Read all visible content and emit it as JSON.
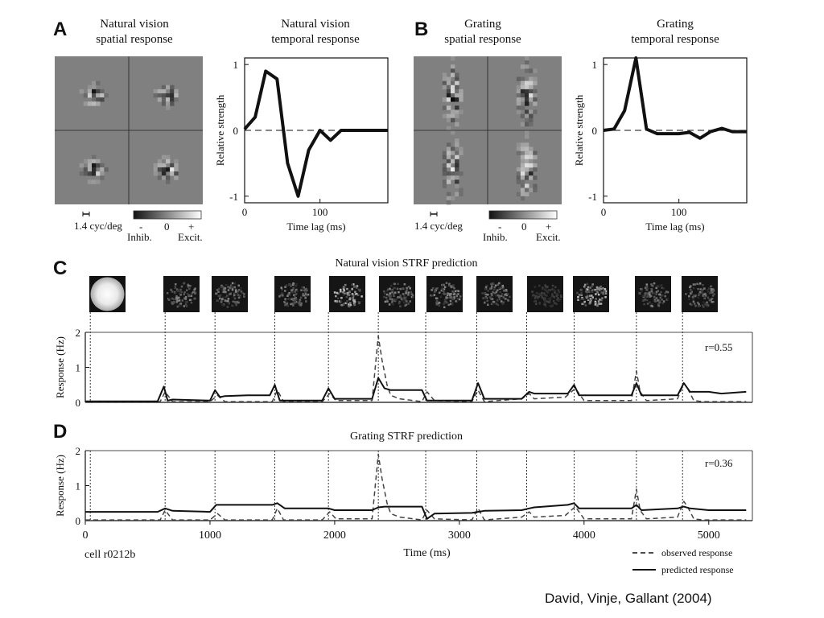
{
  "caption": "David, Vinje, Gallant (2004)",
  "panels": {
    "A": {
      "letter": "A",
      "spatial_title_1": "Natural vision",
      "spatial_title_2": "spatial response",
      "temporal_title_1": "Natural vision",
      "temporal_title_2": "temporal response",
      "scale_label": "1.4 cyc/deg",
      "colorbar_minus": "-",
      "colorbar_zero": "0",
      "colorbar_plus": "+",
      "colorbar_inhib": "Inhib.",
      "colorbar_excit": "Excit."
    },
    "B": {
      "letter": "B",
      "spatial_title_1": "Grating",
      "spatial_title_2": "spatial response",
      "temporal_title_1": "Grating",
      "temporal_title_2": "temporal response",
      "scale_label": "1.4 cyc/deg",
      "colorbar_minus": "-",
      "colorbar_zero": "0",
      "colorbar_plus": "+",
      "colorbar_inhib": "Inhib.",
      "colorbar_excit": "Excit."
    },
    "C": {
      "letter": "C",
      "title": "Natural vision STRF prediction",
      "r_label": "r=0.55"
    },
    "D": {
      "letter": "D",
      "title": "Grating STRF prediction",
      "r_label": "r=0.36"
    }
  },
  "cell_label": "cell r0212b",
  "legend": {
    "observed": "observed response",
    "predicted": "predicted response"
  },
  "chart_data": [
    {
      "type": "line",
      "panel": "A",
      "title": "Natural vision temporal response",
      "xlabel": "Time lag (ms)",
      "ylabel": "Relative strength",
      "xlim": [
        0,
        190
      ],
      "ylim": [
        -1.1,
        1.1
      ],
      "xticks": [
        0,
        100
      ],
      "yticks": [
        -1,
        0,
        1
      ],
      "series": [
        {
          "x": [
            0,
            14,
            28,
            43,
            57,
            71,
            85,
            100,
            114,
            128,
            142,
            157,
            171,
            190
          ],
          "values": [
            0.02,
            0.2,
            0.9,
            0.78,
            -0.5,
            -1.0,
            -0.3,
            0.0,
            -0.15,
            0.0,
            0.0,
            0.0,
            0.0,
            0.0
          ]
        }
      ]
    },
    {
      "type": "line",
      "panel": "B",
      "title": "Grating temporal response",
      "xlabel": "Time lag (ms)",
      "ylabel": "Relative strength",
      "xlim": [
        0,
        190
      ],
      "ylim": [
        -1.1,
        1.1
      ],
      "xticks": [
        0,
        100
      ],
      "yticks": [
        -1,
        0,
        1
      ],
      "series": [
        {
          "x": [
            0,
            14,
            28,
            43,
            57,
            71,
            85,
            100,
            114,
            128,
            142,
            157,
            171,
            190
          ],
          "values": [
            0.0,
            0.02,
            0.3,
            1.1,
            0.02,
            -0.05,
            -0.05,
            -0.05,
            -0.03,
            -0.12,
            -0.02,
            0.03,
            -0.02,
            -0.02
          ]
        }
      ]
    },
    {
      "type": "line",
      "panel": "C",
      "title": "Natural vision STRF prediction",
      "ylabel": "Response (Hz)",
      "xlim": [
        0,
        5350
      ],
      "ylim": [
        0,
        2
      ],
      "yticks": [
        0,
        1,
        2
      ],
      "stimulus_onsets": [
        40,
        640,
        1040,
        1520,
        1950,
        2350,
        2730,
        3140,
        3540,
        3920,
        4420,
        4790
      ],
      "series": [
        {
          "name": "observed response",
          "style": "dashed",
          "x": [
            0,
            600,
            640,
            700,
            1000,
            1060,
            1120,
            1500,
            1540,
            1590,
            1900,
            1960,
            2010,
            2300,
            2350,
            2380,
            2420,
            2450,
            2520,
            2700,
            2740,
            2800,
            3100,
            3150,
            3200,
            3500,
            3560,
            3600,
            3850,
            3930,
            4000,
            4380,
            4420,
            4450,
            4500,
            4750,
            4800,
            4830,
            4880,
            4950,
            5300
          ],
          "values": [
            0.02,
            0.02,
            0.3,
            0.02,
            0.02,
            0.2,
            0.02,
            0.02,
            0.35,
            0.02,
            0.02,
            0.25,
            0.05,
            0.05,
            1.9,
            1.2,
            0.5,
            0.2,
            0.1,
            0.02,
            0.3,
            0.05,
            0.02,
            0.35,
            0.02,
            0.1,
            0.25,
            0.1,
            0.15,
            0.4,
            0.05,
            0.05,
            0.9,
            0.3,
            0.05,
            0.1,
            0.55,
            0.4,
            0.05,
            0.02,
            0.02
          ]
        },
        {
          "name": "predicted response",
          "style": "solid",
          "x": [
            0,
            580,
            630,
            660,
            700,
            1000,
            1040,
            1080,
            1120,
            1300,
            1480,
            1520,
            1560,
            1900,
            1950,
            2000,
            2300,
            2350,
            2400,
            2450,
            2700,
            2740,
            2800,
            3100,
            3150,
            3200,
            3500,
            3560,
            3600,
            3870,
            3920,
            3960,
            4380,
            4420,
            4460,
            4750,
            4800,
            4850,
            5000,
            5100,
            5300
          ],
          "values": [
            0.03,
            0.03,
            0.45,
            0.05,
            0.08,
            0.05,
            0.35,
            0.15,
            0.18,
            0.2,
            0.2,
            0.5,
            0.05,
            0.05,
            0.4,
            0.1,
            0.1,
            0.7,
            0.4,
            0.35,
            0.35,
            0.05,
            0.05,
            0.05,
            0.55,
            0.1,
            0.1,
            0.3,
            0.25,
            0.25,
            0.5,
            0.2,
            0.2,
            0.55,
            0.2,
            0.2,
            0.55,
            0.3,
            0.3,
            0.25,
            0.3
          ]
        }
      ]
    },
    {
      "type": "line",
      "panel": "D",
      "title": "Grating STRF prediction",
      "xlabel": "Time (ms)",
      "ylabel": "Response (Hz)",
      "xlim": [
        0,
        5350
      ],
      "ylim": [
        0,
        2
      ],
      "xticks": [
        0,
        1000,
        2000,
        3000,
        4000,
        5000
      ],
      "yticks": [
        0,
        1,
        2
      ],
      "stimulus_onsets": [
        40,
        640,
        1040,
        1520,
        1950,
        2350,
        2730,
        3140,
        3540,
        3920,
        4420,
        4790
      ],
      "series": [
        {
          "name": "observed response",
          "style": "dashed",
          "x": [
            0,
            600,
            640,
            700,
            1000,
            1060,
            1120,
            1500,
            1540,
            1590,
            1900,
            1960,
            2010,
            2300,
            2350,
            2380,
            2420,
            2450,
            2520,
            2700,
            2740,
            2800,
            3100,
            3150,
            3200,
            3500,
            3560,
            3600,
            3850,
            3930,
            4000,
            4380,
            4420,
            4450,
            4500,
            4750,
            4800,
            4830,
            4880,
            4950,
            5300
          ],
          "values": [
            0.02,
            0.02,
            0.3,
            0.02,
            0.02,
            0.2,
            0.02,
            0.02,
            0.35,
            0.02,
            0.02,
            0.25,
            0.05,
            0.05,
            1.9,
            1.2,
            0.5,
            0.2,
            0.1,
            0.02,
            0.3,
            0.05,
            0.02,
            0.35,
            0.02,
            0.1,
            0.25,
            0.1,
            0.15,
            0.4,
            0.05,
            0.05,
            0.9,
            0.3,
            0.05,
            0.1,
            0.55,
            0.4,
            0.05,
            0.02,
            0.02
          ]
        },
        {
          "name": "predicted response",
          "style": "solid",
          "x": [
            0,
            580,
            640,
            700,
            1000,
            1050,
            1100,
            1500,
            1540,
            1600,
            1900,
            1950,
            2000,
            2300,
            2350,
            2400,
            2700,
            2740,
            2800,
            3100,
            3150,
            3200,
            3500,
            3560,
            3600,
            3870,
            3920,
            3960,
            4380,
            4420,
            4460,
            4750,
            4800,
            4850,
            5000,
            5300
          ],
          "values": [
            0.25,
            0.25,
            0.35,
            0.28,
            0.25,
            0.45,
            0.45,
            0.45,
            0.5,
            0.35,
            0.35,
            0.35,
            0.3,
            0.3,
            0.38,
            0.4,
            0.4,
            0.05,
            0.2,
            0.22,
            0.25,
            0.28,
            0.3,
            0.35,
            0.38,
            0.45,
            0.5,
            0.35,
            0.35,
            0.45,
            0.3,
            0.35,
            0.4,
            0.35,
            0.3,
            0.3
          ]
        }
      ]
    }
  ]
}
